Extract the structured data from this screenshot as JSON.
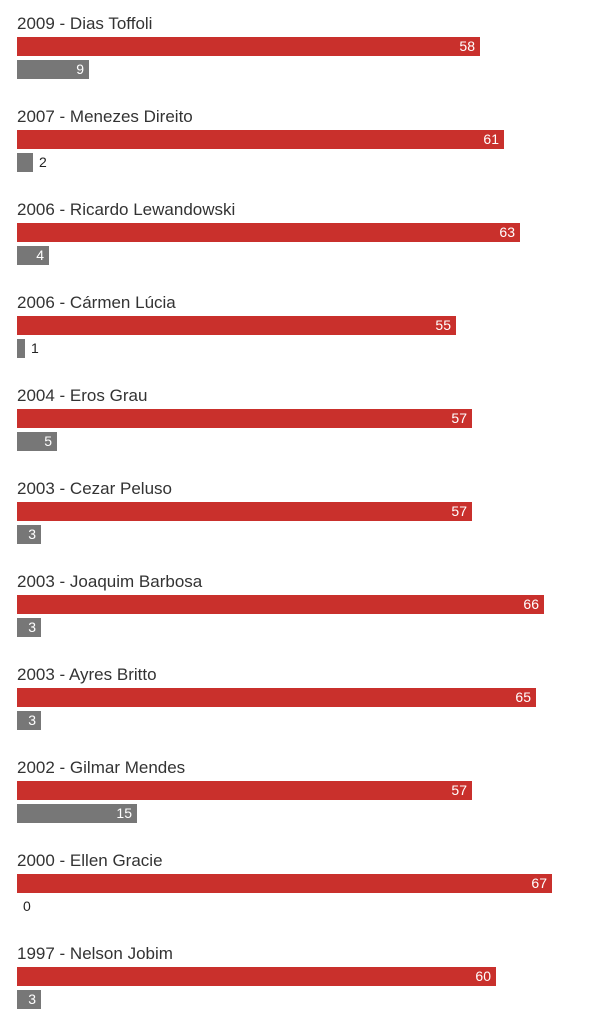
{
  "chart_data": {
    "type": "bar",
    "orientation": "horizontal",
    "grouped": true,
    "categories": [
      "2009 - Dias Toffoli",
      "2007 - Menezes Direito",
      "2006 - Ricardo Lewandowski",
      "2006 - Cármen Lúcia",
      "2004 - Eros Grau",
      "2003 - Cezar Peluso",
      "2003 - Joaquim Barbosa",
      "2003 - Ayres Britto",
      "2002 - Gilmar Mendes",
      "2000 - Ellen Gracie",
      "1997 - Nelson Jobim"
    ],
    "series": [
      {
        "color": "#c9302c",
        "values": [
          58,
          61,
          63,
          55,
          57,
          57,
          66,
          65,
          57,
          67,
          60
        ]
      },
      {
        "color": "#777777",
        "values": [
          9,
          2,
          4,
          1,
          5,
          3,
          3,
          3,
          15,
          0,
          3
        ]
      }
    ],
    "xlim": [
      0,
      67
    ],
    "grid": false,
    "title": "",
    "xlabel": "",
    "ylabel": ""
  }
}
